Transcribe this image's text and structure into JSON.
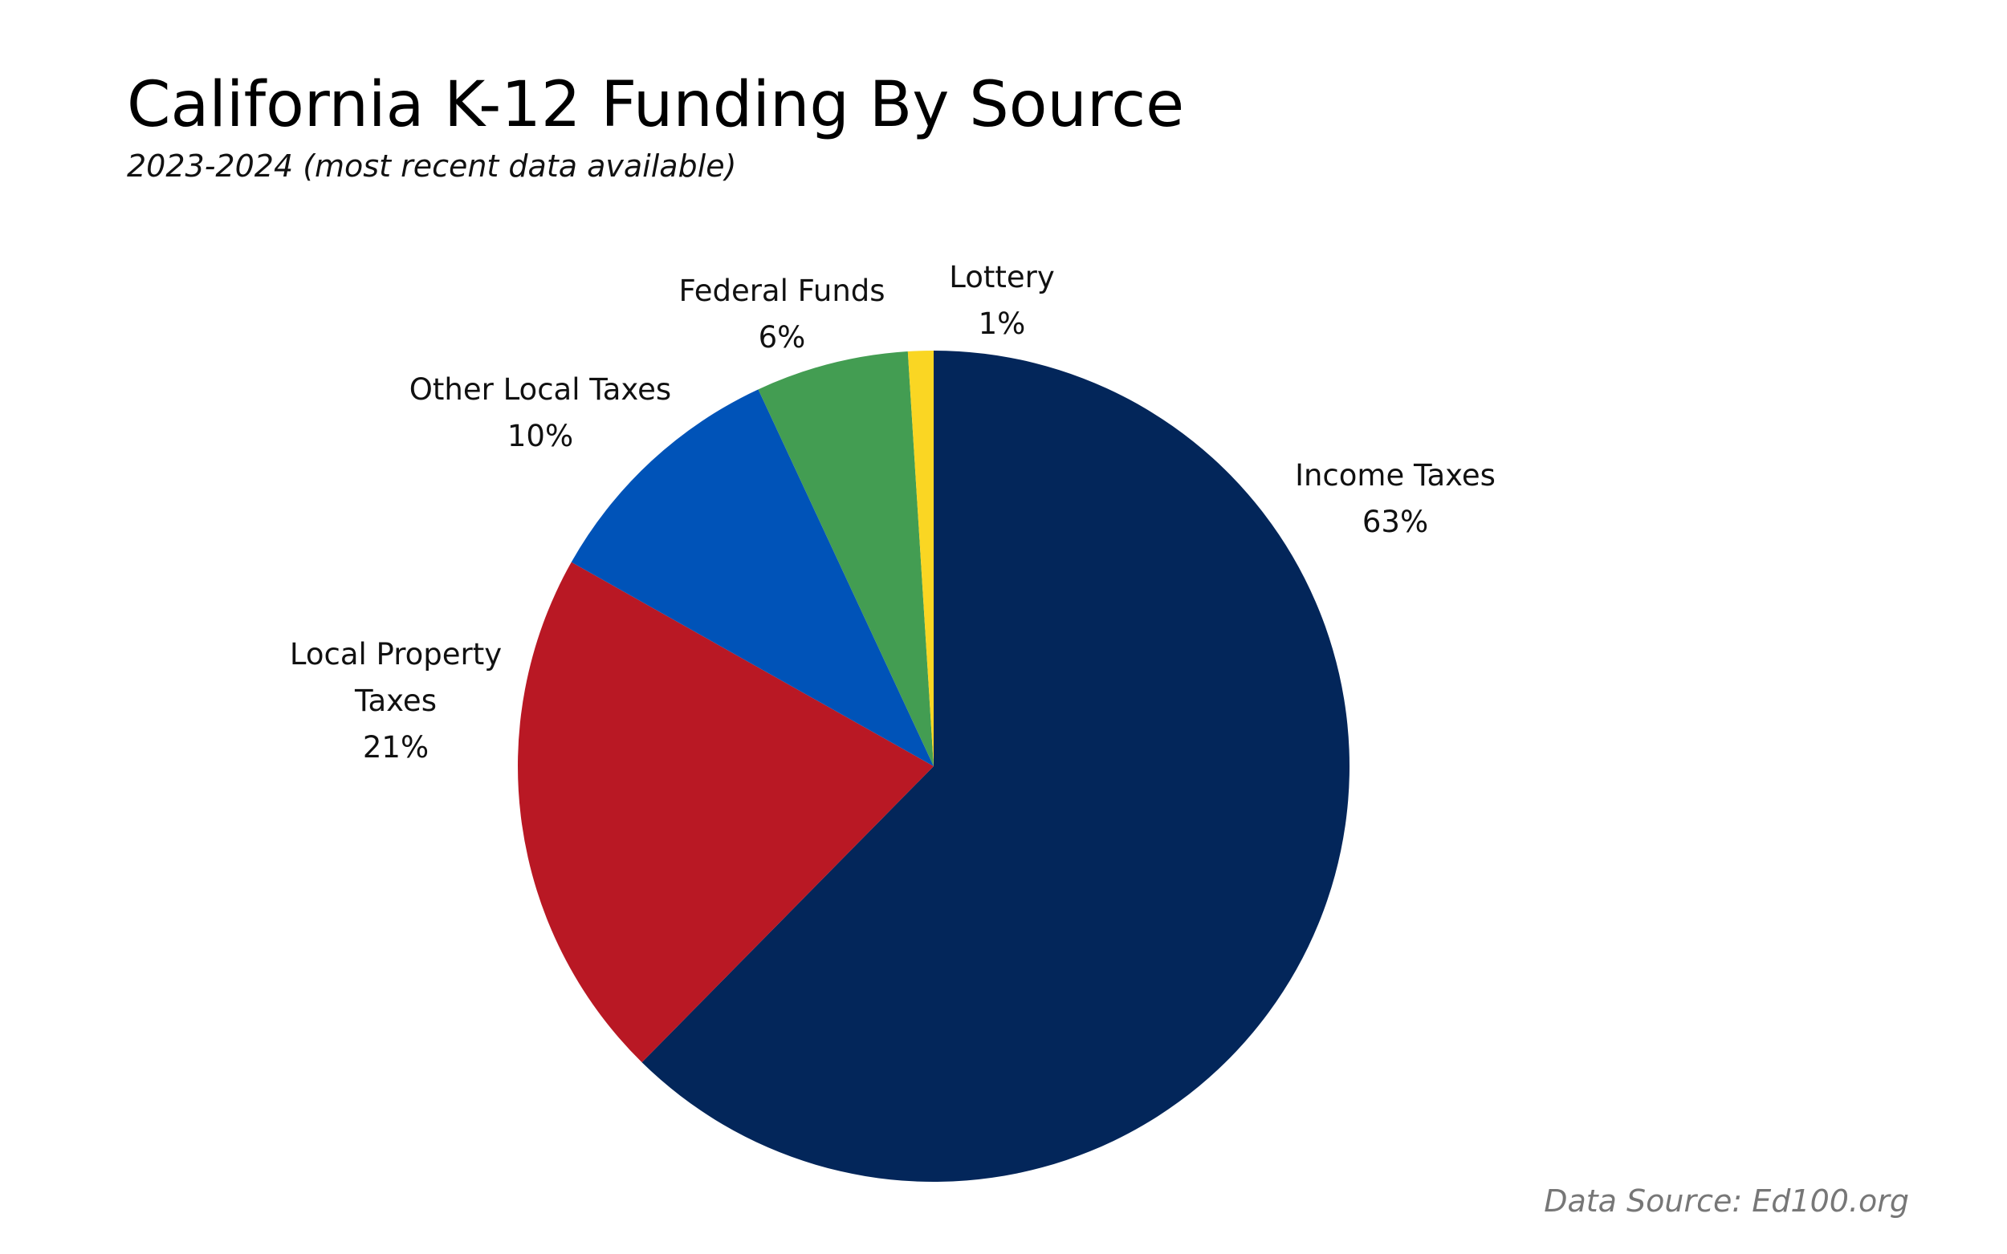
{
  "title": "California K-12 Funding By Source",
  "subtitle": "2023-2024 (most recent data available)",
  "source": "Data Source: Ed100.org",
  "chart_data": {
    "type": "pie",
    "start_angle_deg": 0,
    "direction": "clockwise",
    "slices": [
      {
        "label": [
          "Income Taxes"
        ],
        "value_label": "63%",
        "value": 63,
        "color": "#03265A"
      },
      {
        "label": [
          "Local Property",
          "Taxes"
        ],
        "value_label": "21%",
        "value": 21,
        "color": "#B91824"
      },
      {
        "label": [
          "Other Local Taxes"
        ],
        "value_label": "10%",
        "value": 10,
        "color": "#0053B8"
      },
      {
        "label": [
          "Federal Funds"
        ],
        "value_label": "6%",
        "value": 6,
        "color": "#439D52"
      },
      {
        "label": [
          "Lottery"
        ],
        "value_label": "1%",
        "value": 1,
        "color": "#FAD623"
      }
    ]
  }
}
